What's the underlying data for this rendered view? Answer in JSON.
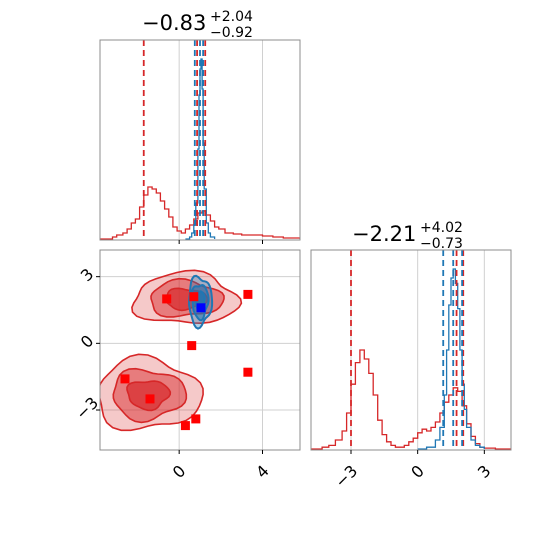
{
  "colors": {
    "red": "#d62728",
    "blue": "#1f77b4",
    "marker_red": "#ff0000",
    "marker_blue": "#0000ff"
  },
  "titles": [
    {
      "main": "−0.83",
      "sup": "+2.04",
      "sub": "−0.92"
    },
    {
      "main": "−2.21",
      "sup": "+4.02",
      "sub": "−0.73"
    }
  ],
  "chart_data": [
    {
      "type": "line",
      "panel": "marginal-param-1",
      "xlim": [
        -3.8,
        5.8
      ],
      "grid": true,
      "series": [
        {
          "color": "#d62728",
          "x": [
            -3.8,
            -3.2,
            -3.0,
            -2.7,
            -2.5,
            -2.3,
            -2.1,
            -1.9,
            -1.7,
            -1.5,
            -1.3,
            -1.1,
            -0.9,
            -0.7,
            -0.5,
            -0.3,
            -0.1,
            0.1,
            0.3,
            0.5,
            0.7,
            0.9,
            1.1,
            1.3,
            1.5,
            1.7,
            1.9,
            2.2,
            2.6,
            3.0,
            3.5,
            4.0,
            4.5,
            5.0,
            5.8
          ],
          "y": [
            0,
            0.01,
            0.02,
            0.03,
            0.05,
            0.08,
            0.1,
            0.16,
            0.22,
            0.26,
            0.25,
            0.23,
            0.19,
            0.15,
            0.11,
            0.06,
            0.04,
            0.03,
            0.05,
            0.07,
            0.1,
            0.13,
            0.14,
            0.12,
            0.09,
            0.06,
            0.05,
            0.03,
            0.025,
            0.02,
            0.02,
            0.015,
            0.01,
            0.005,
            0
          ]
        },
        {
          "color": "#1f77b4",
          "x": [
            0.3,
            0.5,
            0.6,
            0.7,
            0.8,
            0.9,
            0.95,
            1.0,
            1.05,
            1.1,
            1.15,
            1.2,
            1.3,
            1.4,
            1.5,
            1.7
          ],
          "y": [
            0,
            0.01,
            0.03,
            0.07,
            0.18,
            0.45,
            0.72,
            0.85,
            0.9,
            0.75,
            0.48,
            0.25,
            0.08,
            0.03,
            0.01,
            0
          ]
        }
      ],
      "vlines": [
        {
          "x": -1.7,
          "color": "#d62728"
        },
        {
          "x": 0.86,
          "color": "#d62728"
        },
        {
          "x": 1.25,
          "color": "#d62728"
        },
        {
          "x": 0.75,
          "color": "#1f77b4"
        },
        {
          "x": 1.0,
          "color": "#1f77b4"
        },
        {
          "x": 1.15,
          "color": "#1f77b4"
        }
      ]
    },
    {
      "type": "line",
      "panel": "marginal-param-2",
      "xlim": [
        -4.8,
        4.2
      ],
      "xticks": [
        -3,
        0,
        3
      ],
      "grid": true,
      "series": [
        {
          "color": "#d62728",
          "x": [
            -4.8,
            -4.3,
            -4.0,
            -3.7,
            -3.4,
            -3.2,
            -3.0,
            -2.8,
            -2.6,
            -2.4,
            -2.2,
            -2.0,
            -1.8,
            -1.6,
            -1.4,
            -1.2,
            -1.0,
            -0.8,
            -0.6,
            -0.4,
            -0.2,
            0.0,
            0.2,
            0.4,
            0.6,
            0.8,
            1.0,
            1.2,
            1.4,
            1.6,
            1.8,
            2.0,
            2.2,
            2.4,
            2.6,
            2.8,
            3.0,
            3.5,
            4.2
          ],
          "y": [
            0,
            0.01,
            0.02,
            0.05,
            0.1,
            0.2,
            0.36,
            0.48,
            0.55,
            0.5,
            0.42,
            0.3,
            0.16,
            0.08,
            0.04,
            0.02,
            0.01,
            0.01,
            0.02,
            0.04,
            0.06,
            0.09,
            0.11,
            0.1,
            0.12,
            0.15,
            0.2,
            0.26,
            0.3,
            0.34,
            0.32,
            0.24,
            0.14,
            0.07,
            0.03,
            0.01,
            0.005,
            0,
            0
          ]
        },
        {
          "color": "#1f77b4",
          "x": [
            0.0,
            0.4,
            0.8,
            1.0,
            1.2,
            1.3,
            1.4,
            1.5,
            1.6,
            1.7,
            1.8,
            1.9,
            2.0,
            2.1,
            2.2,
            2.4,
            2.6,
            2.8,
            3.0
          ],
          "y": [
            0,
            0.01,
            0.05,
            0.12,
            0.3,
            0.55,
            0.8,
            0.95,
            1.0,
            0.92,
            0.78,
            0.55,
            0.36,
            0.22,
            0.12,
            0.05,
            0.02,
            0.01,
            0
          ]
        }
      ],
      "vlines": [
        {
          "x": -3.0,
          "color": "#d62728"
        },
        {
          "x": 1.75,
          "color": "#d62728"
        },
        {
          "x": 2.05,
          "color": "#d62728"
        },
        {
          "x": 1.15,
          "color": "#1f77b4"
        },
        {
          "x": 1.6,
          "color": "#1f77b4"
        },
        {
          "x": 2.0,
          "color": "#1f77b4"
        }
      ]
    },
    {
      "type": "scatter",
      "panel": "joint-param-1-vs-param-2",
      "xlim": [
        -3.8,
        5.8
      ],
      "ylim": [
        -4.8,
        4.2
      ],
      "xticks": [
        0,
        4
      ],
      "yticks": [
        -3,
        0,
        3
      ],
      "grid": true,
      "series": [
        {
          "name": "",
          "color": "#ff0000",
          "marker": "square",
          "x": [
            -2.6,
            -0.6,
            0.7,
            3.3,
            0.6,
            -1.4,
            3.3,
            0.3,
            0.8
          ],
          "y": [
            -1.6,
            2.0,
            2.1,
            2.2,
            -0.1,
            -2.5,
            -1.3,
            -3.7,
            -3.4
          ]
        },
        {
          "name": "",
          "color": "#0000ff",
          "marker": "square",
          "x": [
            1.05
          ],
          "y": [
            1.6
          ]
        }
      ],
      "contours": [
        {
          "color": "#d62728",
          "cx": 0.3,
          "cy": 2.0,
          "rx": 2.5,
          "ry": 1.15,
          "levels": 3
        },
        {
          "color": "#d62728",
          "cx": -1.5,
          "cy": -2.3,
          "rx": 2.5,
          "ry": 1.6,
          "levels": 3
        },
        {
          "color": "#1f77b4",
          "cx": 1.0,
          "cy": 1.9,
          "rx": 0.55,
          "ry": 1.1,
          "levels": 3
        }
      ]
    }
  ]
}
